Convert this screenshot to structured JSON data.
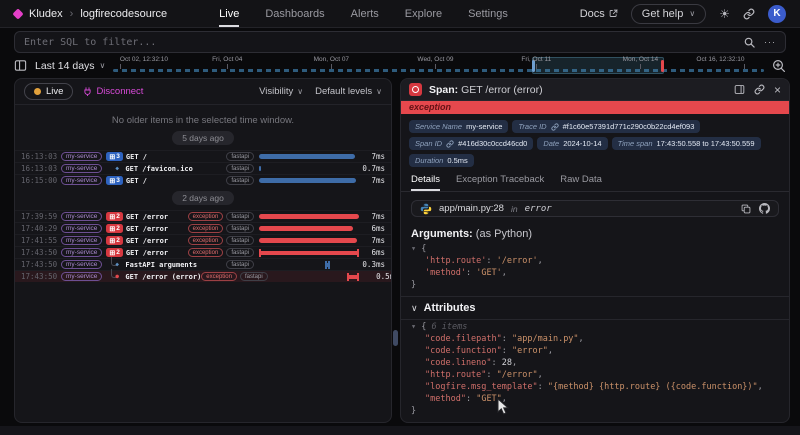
{
  "header": {
    "org": "Kludex",
    "project": "logfirecodesource",
    "nav": [
      {
        "label": "Live",
        "active": true
      },
      {
        "label": "Dashboards",
        "active": false
      },
      {
        "label": "Alerts",
        "active": false
      },
      {
        "label": "Explore",
        "active": false
      },
      {
        "label": "Settings",
        "active": false
      }
    ],
    "docs_label": "Docs",
    "get_help_label": "Get help",
    "avatar_initial": "K"
  },
  "filter": {
    "placeholder": "Enter SQL to filter..."
  },
  "timebar": {
    "range_label": "Last 14 days",
    "ticks": [
      {
        "label": "Oct 02, 12:32:10",
        "pct": 1
      },
      {
        "label": "Fri, Oct 04",
        "pct": 17.5
      },
      {
        "label": "Mon, Oct 07",
        "pct": 33.5
      },
      {
        "label": "Wed, Oct 09",
        "pct": 49.5
      },
      {
        "label": "Fri, Oct 11",
        "pct": 65
      },
      {
        "label": "Mon, Oct 14",
        "pct": 81
      },
      {
        "label": "Oct 16, 12:32:10",
        "pct": 97
      }
    ],
    "selection": {
      "start_pct": 64.3,
      "end_pct": 84.6
    }
  },
  "live_panel": {
    "live_label": "Live",
    "disconnect_label": "Disconnect",
    "visibility_label": "Visibility",
    "levels_label": "Default levels",
    "empty_message": "No older items in the selected time window.",
    "groups": [
      {
        "ago": "5 days ago",
        "rows": [
          {
            "time": "16:13:03",
            "service": "my-service",
            "badge": {
              "count": "3",
              "color": "blue"
            },
            "name": "GET /",
            "tags": [
              "fastapi"
            ],
            "bar": {
              "style": "bar",
              "color": "blue",
              "left_pct": 0,
              "width_pct": 96
            },
            "duration": "7ms"
          },
          {
            "time": "16:13:03",
            "service": "my-service",
            "marker": {
              "shape": "diamond",
              "color": "blue"
            },
            "name": "GET /favicon.ico",
            "tags": [
              "fastapi"
            ],
            "bar": {
              "style": "tick",
              "color": "blue",
              "left_pct": 0,
              "width_pct": 2
            },
            "duration": "0.7ms"
          },
          {
            "time": "16:15:00",
            "service": "my-service",
            "badge": {
              "count": "3",
              "color": "blue"
            },
            "name": "GET /",
            "tags": [
              "fastapi"
            ],
            "bar": {
              "style": "bar",
              "color": "blue",
              "left_pct": 0,
              "width_pct": 97
            },
            "duration": "7ms"
          }
        ]
      },
      {
        "ago": "2 days ago",
        "rows": [
          {
            "time": "17:39:59",
            "service": "my-service",
            "badge": {
              "count": "2",
              "color": "red"
            },
            "name": "GET /error",
            "tags": [
              "exception",
              "fastapi"
            ],
            "bar": {
              "style": "bar",
              "color": "red",
              "left_pct": 0,
              "width_pct": 100
            },
            "duration": "7ms"
          },
          {
            "time": "17:40:29",
            "service": "my-service",
            "badge": {
              "count": "2",
              "color": "red"
            },
            "name": "GET /error",
            "tags": [
              "exception",
              "fastapi"
            ],
            "bar": {
              "style": "bar",
              "color": "red",
              "left_pct": 0,
              "width_pct": 94
            },
            "duration": "6ms"
          },
          {
            "time": "17:41:55",
            "service": "my-service",
            "badge": {
              "count": "2",
              "color": "red"
            },
            "name": "GET /error",
            "tags": [
              "exception",
              "fastapi"
            ],
            "bar": {
              "style": "bar",
              "color": "red",
              "left_pct": 0,
              "width_pct": 98
            },
            "duration": "7ms"
          },
          {
            "time": "17:43:50",
            "service": "my-service",
            "badge": {
              "count": "2",
              "color": "red"
            },
            "name": "GET /error",
            "tags": [
              "exception",
              "fastapi"
            ],
            "bar": {
              "style": "ibeam",
              "color": "red",
              "left_pct": 0,
              "width_pct": 100
            },
            "duration": "6ms"
          },
          {
            "time": "17:43:50",
            "service": "my-service",
            "child": true,
            "marker": {
              "shape": "diamond",
              "color": "blue"
            },
            "name": "FastAPI arguments",
            "tags": [
              "fastapi"
            ],
            "bar": {
              "style": "ibeam",
              "color": "blue",
              "left_pct": 66,
              "width_pct": 5
            },
            "duration": "0.3ms"
          },
          {
            "time": "17:43:50",
            "service": "my-service",
            "child": true,
            "selected": true,
            "marker": {
              "shape": "dot",
              "color": "red"
            },
            "name": "GET /error (error)",
            "tags": [
              "exception",
              "fastapi"
            ],
            "bar": {
              "style": "ibeam",
              "color": "red",
              "left_pct": 74,
              "width_pct": 12
            },
            "duration": "0.5ms"
          }
        ]
      }
    ]
  },
  "detail_panel": {
    "title_prefix": "Span:",
    "title": "GET /error (error)",
    "banner": "exception",
    "chips": [
      {
        "label": "Service Name",
        "value": "my-service",
        "link": false
      },
      {
        "label": "Trace ID",
        "value": "#f1c60e57391d771c290c0b22cd4ef093",
        "link": true
      },
      {
        "label": "Span ID",
        "value": "#416d30c0ccd46cd0",
        "link": true
      },
      {
        "label": "Date",
        "value": "2024-10-14",
        "link": false
      },
      {
        "label": "Time span",
        "value": "17:43:50.558 to 17:43:50.559",
        "link": false
      },
      {
        "label": "Duration",
        "value": "0.5ms",
        "link": false
      }
    ],
    "tabs": [
      {
        "label": "Details",
        "active": true
      },
      {
        "label": "Exception Traceback",
        "active": false
      },
      {
        "label": "Raw Data",
        "active": false
      }
    ],
    "code_location": {
      "file": "app/main.py:28",
      "in_word": "in",
      "function": "error"
    },
    "arguments": {
      "heading": "Arguments:",
      "subheading": "(as Python)",
      "pairs": [
        {
          "key": "'http.route'",
          "value": "'/error'",
          "type": "str"
        },
        {
          "key": "'method'",
          "value": "'GET'",
          "type": "str"
        }
      ]
    },
    "attributes": {
      "heading": "Attributes",
      "items_note": "6 items",
      "pairs": [
        {
          "key": "\"code.filepath\"",
          "value": "\"app/main.py\"",
          "type": "str"
        },
        {
          "key": "\"code.function\"",
          "value": "\"error\"",
          "type": "str"
        },
        {
          "key": "\"code.lineno\"",
          "value": "28",
          "type": "num"
        },
        {
          "key": "\"http.route\"",
          "value": "\"/error\"",
          "type": "str"
        },
        {
          "key": "\"logfire.msg_template\"",
          "value": "\"{method} {http.route} ({code.function})\"",
          "type": "str"
        },
        {
          "key": "\"method\"",
          "value": "\"GET\"",
          "type": "str"
        }
      ]
    }
  },
  "icons": {
    "chevron_down": "∨",
    "ellipsis": "···",
    "close": "×",
    "breadcrumb_sep": "›",
    "collapse_triangle": "▾",
    "expand_glyph": "⊞",
    "diamond": "◆",
    "dot": "●",
    "sun": "☀"
  },
  "colors": {
    "accent_red": "#e5484d",
    "accent_blue": "#3e6ca8",
    "accent_magenta": "#d84ad8",
    "service_purple": "#ab8ad0",
    "live_dot_orange": "#e2a13c"
  }
}
